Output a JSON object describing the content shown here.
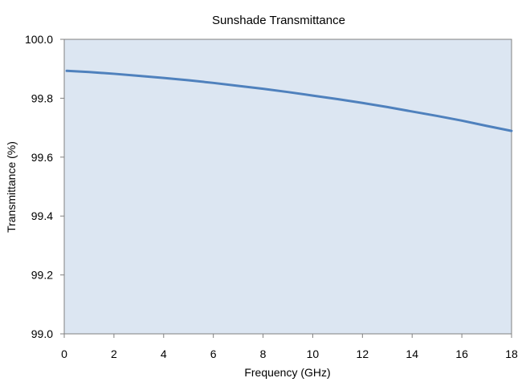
{
  "chart_data": {
    "type": "line",
    "title": "Sunshade Transmittance",
    "xlabel": "Frequency (GHz)",
    "ylabel": "Transmittance (%)",
    "xlim": [
      0,
      18
    ],
    "ylim": [
      99.0,
      100.0
    ],
    "x_ticks": [
      "0",
      "2",
      "4",
      "6",
      "8",
      "10",
      "12",
      "14",
      "16",
      "18"
    ],
    "y_ticks": [
      "99.0",
      "99.2",
      "99.4",
      "99.6",
      "99.8",
      "100.0"
    ],
    "grid": false,
    "legend": "none",
    "series": [
      {
        "x": [
          0.1,
          1,
          2,
          3,
          4,
          5,
          6,
          7,
          8,
          9,
          10,
          11,
          12,
          13,
          14,
          15,
          16,
          17,
          18
        ],
        "y": [
          99.893,
          99.889,
          99.883,
          99.876,
          99.869,
          99.861,
          99.852,
          99.842,
          99.832,
          99.821,
          99.809,
          99.797,
          99.784,
          99.77,
          99.755,
          99.74,
          99.724,
          99.706,
          99.689
        ],
        "color": "#4f81bd"
      }
    ],
    "plot_background": "#dce6f2",
    "axis_color": "#808080"
  }
}
